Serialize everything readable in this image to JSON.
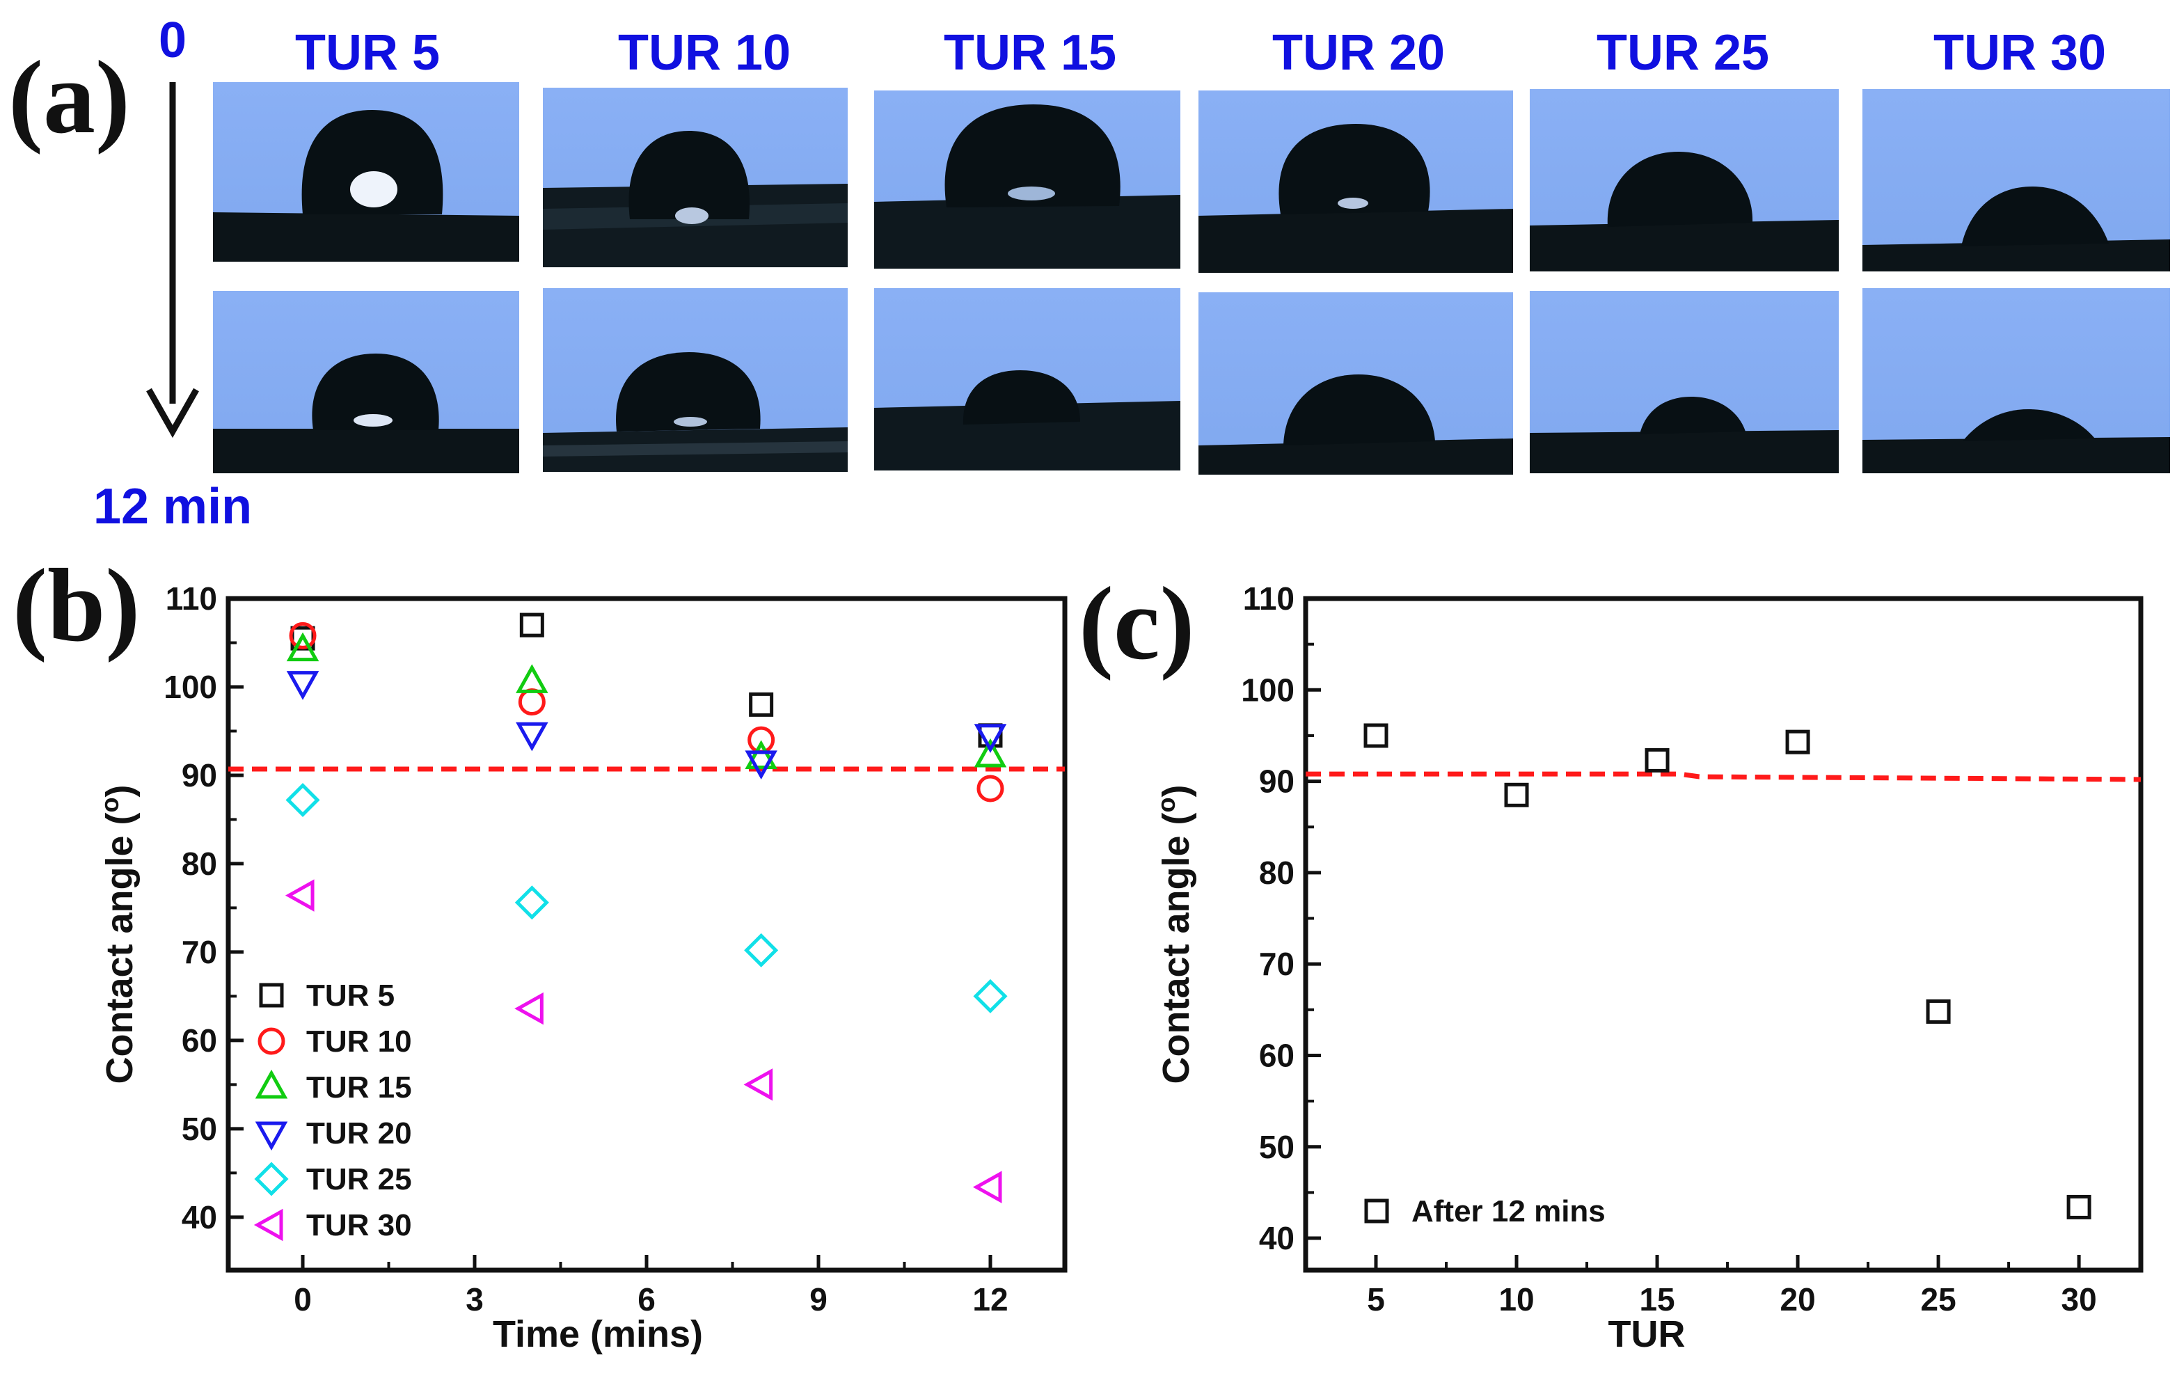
{
  "panel_a": {
    "letter": "(a)",
    "time_start": "0",
    "time_end": "12 min",
    "columns": [
      "TUR 5",
      "TUR 10",
      "TUR 15",
      "TUR 20",
      "TUR 25",
      "TUR 30"
    ]
  },
  "chart_data": [
    {
      "type": "scatter",
      "panel": "(b)",
      "xlabel": "Time (mins)",
      "ylabel": "Contact angle",
      "ylabel_unit": "o",
      "xlim": [
        -1.3,
        13.3
      ],
      "ylim": [
        34,
        110
      ],
      "xticks": [
        0,
        3,
        6,
        9,
        12
      ],
      "yticks": [
        40,
        50,
        60,
        70,
        80,
        90,
        100,
        110
      ],
      "reference_line": 90.7,
      "legend_position": "bottom-left",
      "series": [
        {
          "name": "TUR 5",
          "marker": "square",
          "color": "#111111",
          "x": [
            0,
            4,
            8,
            12
          ],
          "y": [
            105.5,
            107,
            98,
            94.5
          ]
        },
        {
          "name": "TUR 10",
          "marker": "circle",
          "color": "#ff1a1a",
          "x": [
            0,
            4,
            8,
            12
          ],
          "y": [
            105.8,
            98.3,
            94,
            88.5
          ]
        },
        {
          "name": "TUR 15",
          "marker": "triangle-up",
          "color": "#11cc11",
          "x": [
            0,
            4,
            8,
            12
          ],
          "y": [
            104.2,
            100.6,
            92,
            92.2
          ]
        },
        {
          "name": "TUR 20",
          "marker": "triangle-down",
          "color": "#1a1aee",
          "x": [
            0,
            4,
            8,
            12
          ],
          "y": [
            100.5,
            94.7,
            91.5,
            94.5
          ]
        },
        {
          "name": "TUR 25",
          "marker": "diamond",
          "color": "#11e0e8",
          "x": [
            0,
            4,
            8,
            12
          ],
          "y": [
            87.2,
            75.6,
            70.2,
            65
          ]
        },
        {
          "name": "TUR 30",
          "marker": "triangle-left",
          "color": "#ee11ee",
          "x": [
            0,
            4,
            8,
            12
          ],
          "y": [
            76.4,
            63.6,
            55,
            43.4
          ]
        }
      ]
    },
    {
      "type": "scatter",
      "panel": "(c)",
      "xlabel": "TUR",
      "ylabel": "Contact angle",
      "ylabel_unit": "o",
      "xlim": [
        2.5,
        32.2
      ],
      "ylim": [
        36.5,
        110
      ],
      "xticks": [
        5,
        10,
        15,
        20,
        25,
        30
      ],
      "yticks": [
        40,
        50,
        60,
        70,
        80,
        90,
        100,
        110
      ],
      "reference_line_points": [
        [
          2.5,
          90.8
        ],
        [
          15.8,
          90.8
        ],
        [
          16.5,
          90.5
        ],
        [
          32.2,
          90.2
        ]
      ],
      "legend_position": "bottom-left",
      "series": [
        {
          "name": "After 12 mins",
          "marker": "square",
          "color": "#111111",
          "x": [
            5,
            10,
            15,
            20,
            25,
            30
          ],
          "y": [
            95,
            88.5,
            92.3,
            94.3,
            64.8,
            43.4
          ]
        }
      ]
    }
  ]
}
